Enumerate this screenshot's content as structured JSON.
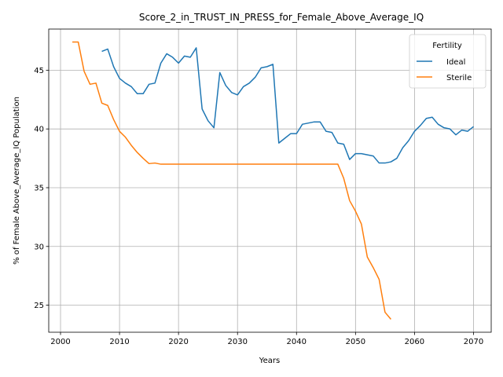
{
  "chart_data": {
    "type": "line",
    "title": "Score_2_in_TRUST_IN_PRESS_for_Female_Above_Average_IQ",
    "xlabel": "Years",
    "ylabel": "% of Female Above_Average_IQ Population",
    "xlim": [
      1998,
      2073
    ],
    "ylim": [
      22.7,
      48.5
    ],
    "xticks": [
      2000,
      2010,
      2020,
      2030,
      2040,
      2050,
      2060,
      2070
    ],
    "yticks": [
      25,
      30,
      35,
      40,
      45
    ],
    "grid": true,
    "legend": {
      "title": "Fertility",
      "placement": "top-right"
    },
    "series": [
      {
        "name": "Ideal",
        "color": "#1f77b4",
        "x": [
          2007,
          2008,
          2009,
          2010,
          2011,
          2012,
          2013,
          2014,
          2015,
          2016,
          2017,
          2018,
          2019,
          2020,
          2021,
          2022,
          2023,
          2024,
          2025,
          2026,
          2027,
          2028,
          2029,
          2030,
          2031,
          2032,
          2033,
          2034,
          2035,
          2036,
          2037,
          2038,
          2039,
          2040,
          2041,
          2042,
          2043,
          2044,
          2045,
          2046,
          2047,
          2048,
          2049,
          2050,
          2051,
          2052,
          2053,
          2054,
          2055,
          2056,
          2057,
          2058,
          2059,
          2060,
          2061,
          2062,
          2063,
          2064,
          2065,
          2066,
          2067,
          2068,
          2069,
          2070
        ],
        "y": [
          46.6,
          46.8,
          45.3,
          44.3,
          43.9,
          43.6,
          43.0,
          43.0,
          43.8,
          43.9,
          45.6,
          46.4,
          46.1,
          45.6,
          46.2,
          46.1,
          46.9,
          41.7,
          40.7,
          40.1,
          44.8,
          43.7,
          43.1,
          42.9,
          43.6,
          43.9,
          44.4,
          45.2,
          45.3,
          45.5,
          38.8,
          39.2,
          39.6,
          39.6,
          40.4,
          40.5,
          40.6,
          40.6,
          39.8,
          39.7,
          38.8,
          38.7,
          37.4,
          37.9,
          37.9,
          37.8,
          37.7,
          37.1,
          37.1,
          37.2,
          37.5,
          38.4,
          39.0,
          39.8,
          40.3,
          40.9,
          41.0,
          40.4,
          40.1,
          40.0,
          39.5,
          39.9,
          39.8,
          40.2
        ]
      },
      {
        "name": "Sterile",
        "color": "#ff7f0e",
        "x": [
          2002,
          2003,
          2004,
          2005,
          2006,
          2007,
          2008,
          2009,
          2010,
          2011,
          2012,
          2013,
          2014,
          2015,
          2016,
          2017,
          2018,
          2019,
          2020,
          2021,
          2022,
          2023,
          2024,
          2025,
          2026,
          2027,
          2028,
          2029,
          2030,
          2031,
          2032,
          2033,
          2034,
          2035,
          2036,
          2037,
          2038,
          2039,
          2040,
          2041,
          2042,
          2043,
          2044,
          2045,
          2046,
          2047,
          2048,
          2049,
          2050,
          2051,
          2052,
          2053,
          2054,
          2055,
          2056
        ],
        "y": [
          47.4,
          47.4,
          44.9,
          43.8,
          43.9,
          42.2,
          42.0,
          40.8,
          39.8,
          39.3,
          38.6,
          38.0,
          37.5,
          37.05,
          37.1,
          37.0,
          37.0,
          37.0,
          37.0,
          37.0,
          37.0,
          37.0,
          37.0,
          37.0,
          37.0,
          37.0,
          37.0,
          37.0,
          37.0,
          37.0,
          37.0,
          37.0,
          37.0,
          37.0,
          37.0,
          37.0,
          37.0,
          37.0,
          37.0,
          37.0,
          37.0,
          37.0,
          37.0,
          37.0,
          37.0,
          37.0,
          35.8,
          33.9,
          33.0,
          31.9,
          29.1,
          28.2,
          27.2,
          24.4,
          23.8
        ]
      }
    ]
  }
}
